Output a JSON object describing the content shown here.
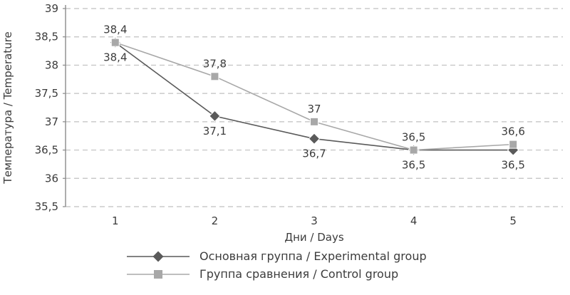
{
  "chart_data": {
    "type": "line",
    "x": [
      1,
      2,
      3,
      4,
      5
    ],
    "series": [
      {
        "name": "Основная группа / Experimental group",
        "values": [
          38.4,
          37.1,
          36.7,
          36.5,
          36.5
        ],
        "labels": [
          "38,4",
          "37,1",
          "36,7",
          "36,5",
          "36,5"
        ],
        "marker": "diamond",
        "color": "#5a5a5a",
        "label_position": "below"
      },
      {
        "name": "Группа сравнения / Control group",
        "values": [
          38.4,
          37.8,
          37.0,
          36.5,
          36.6
        ],
        "labels": [
          "38,4",
          "37,8",
          "37",
          "36,5",
          "36,6"
        ],
        "marker": "square",
        "color": "#a8a8a8",
        "label_position": "above"
      }
    ],
    "xlabel": "Дни / Days",
    "ylabel": "Температура / Temperature",
    "ylim": [
      35.5,
      39
    ],
    "ytick_step": 0.5,
    "ytick_labels": [
      "35,5",
      "36",
      "36,5",
      "37",
      "37,5",
      "38",
      "38,5",
      "39"
    ],
    "xtick_labels": [
      "1",
      "2",
      "3",
      "4",
      "5"
    ],
    "grid": "horizontal-dashed",
    "legend_position": "bottom",
    "colors": {
      "gridline": "#c0c0c0",
      "axis": "#8a8a8a",
      "text": "#3c3c3c"
    }
  }
}
